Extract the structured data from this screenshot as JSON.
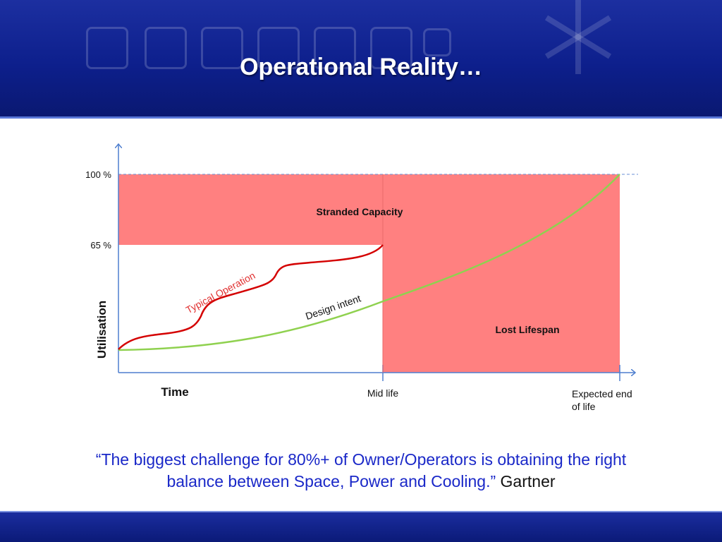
{
  "title": "Operational Reality…",
  "diagram": {
    "y_ticks": [
      "100 %",
      "65 %"
    ],
    "y_axis_label": "Utilisation",
    "x_axis_label": "Time",
    "x_markers": {
      "mid": "Mid life",
      "end_line1": "Expected end",
      "end_line2": "of life"
    },
    "regions": {
      "stranded": "Stranded Capacity",
      "lost": "Lost Lifespan"
    },
    "curves": {
      "typical": "Typical Operation",
      "design": "Design intent"
    },
    "colors": {
      "region_fill": "#ff8080",
      "typical_curve": "#d40000",
      "design_curve": "#8fd14f",
      "axis": "#4f7fcf",
      "typical_label": "#e03030"
    }
  },
  "quote": {
    "text": "“The biggest challenge for 80%+ of Owner/Operators is obtaining the right balance between Space, Power and Cooling.”",
    "source": "Gartner"
  }
}
